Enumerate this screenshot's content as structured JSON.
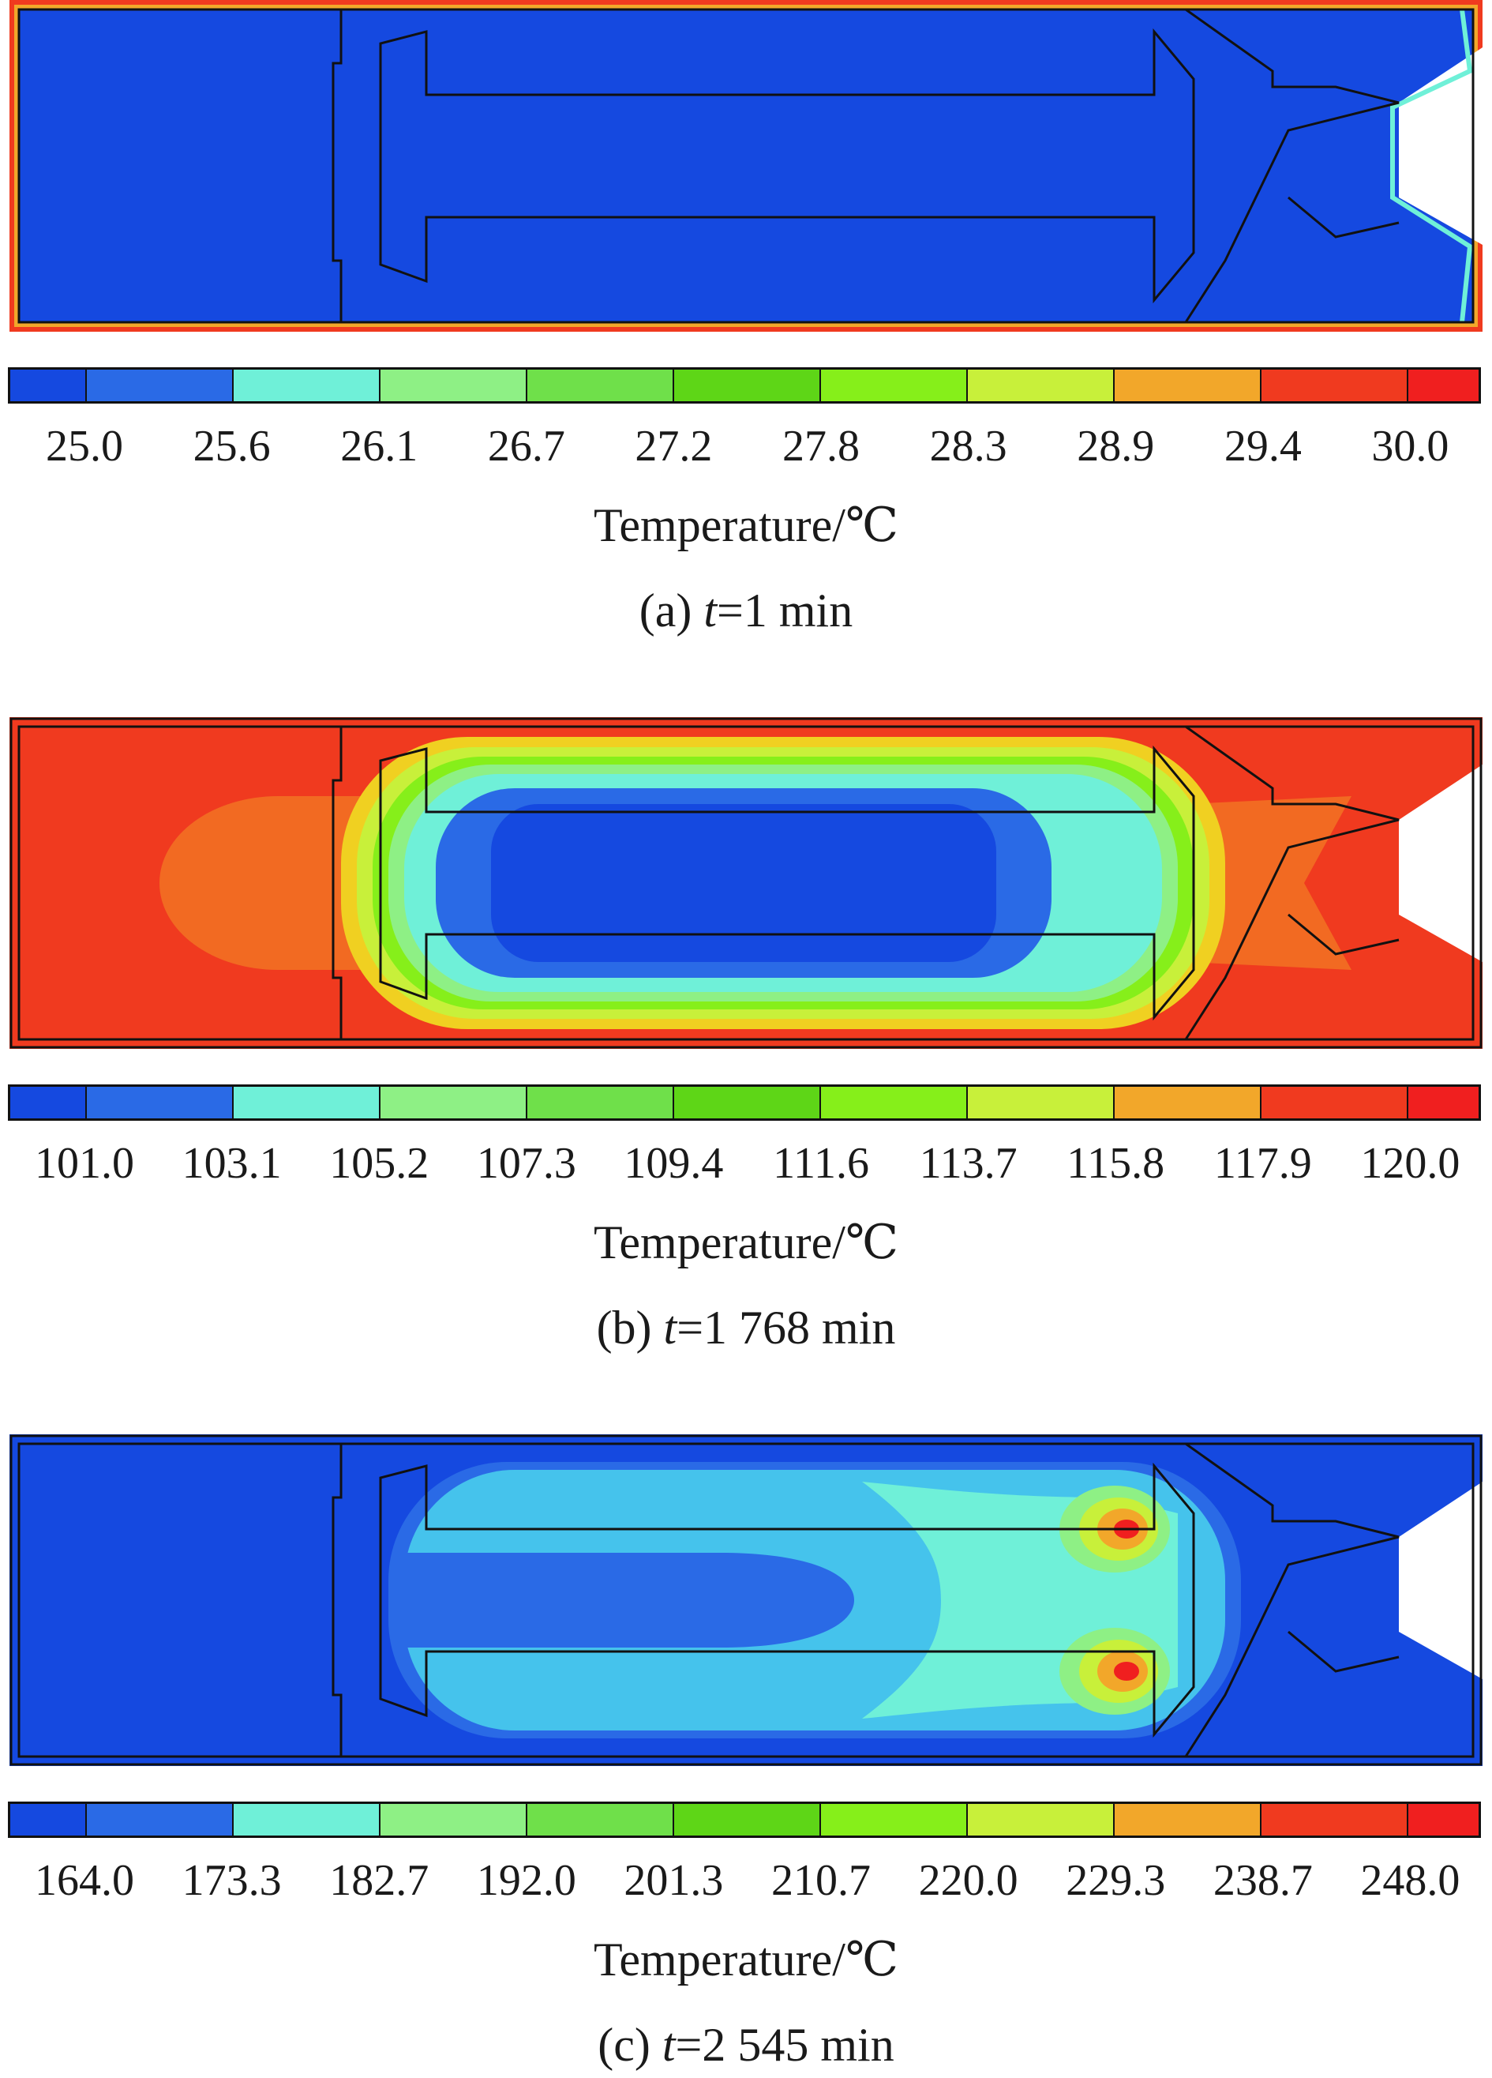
{
  "colors": {
    "scale": [
      "#1549e0",
      "#2a6ae6",
      "#6ff0d8",
      "#8ef085",
      "#6fe04a",
      "#5ed617",
      "#86ef1a",
      "#c8f03a",
      "#f2a72a",
      "#f03a1f",
      "#f01f1f"
    ]
  },
  "panels": [
    {
      "ticks": [
        "25.0",
        "25.6",
        "26.1",
        "26.7",
        "27.2",
        "27.8",
        "28.3",
        "28.9",
        "29.4",
        "30.0"
      ],
      "unit_label": "Temperature/℃",
      "caption_prefix": "(a) ",
      "caption_var": "t",
      "caption_value": "=1 min"
    },
    {
      "ticks": [
        "101.0",
        "103.1",
        "105.2",
        "107.3",
        "109.4",
        "111.6",
        "113.7",
        "115.8",
        "117.9",
        "120.0"
      ],
      "unit_label": "Temperature/℃",
      "caption_prefix": "(b) ",
      "caption_var": "t",
      "caption_value": "=1 768 min"
    },
    {
      "ticks": [
        "164.0",
        "173.3",
        "182.7",
        "192.0",
        "201.3",
        "210.7",
        "220.0",
        "229.3",
        "238.7",
        "248.0"
      ],
      "unit_label": "Temperature/℃",
      "caption_prefix": "(c) ",
      "caption_var": "t",
      "caption_value": "=2 545 min"
    }
  ]
}
